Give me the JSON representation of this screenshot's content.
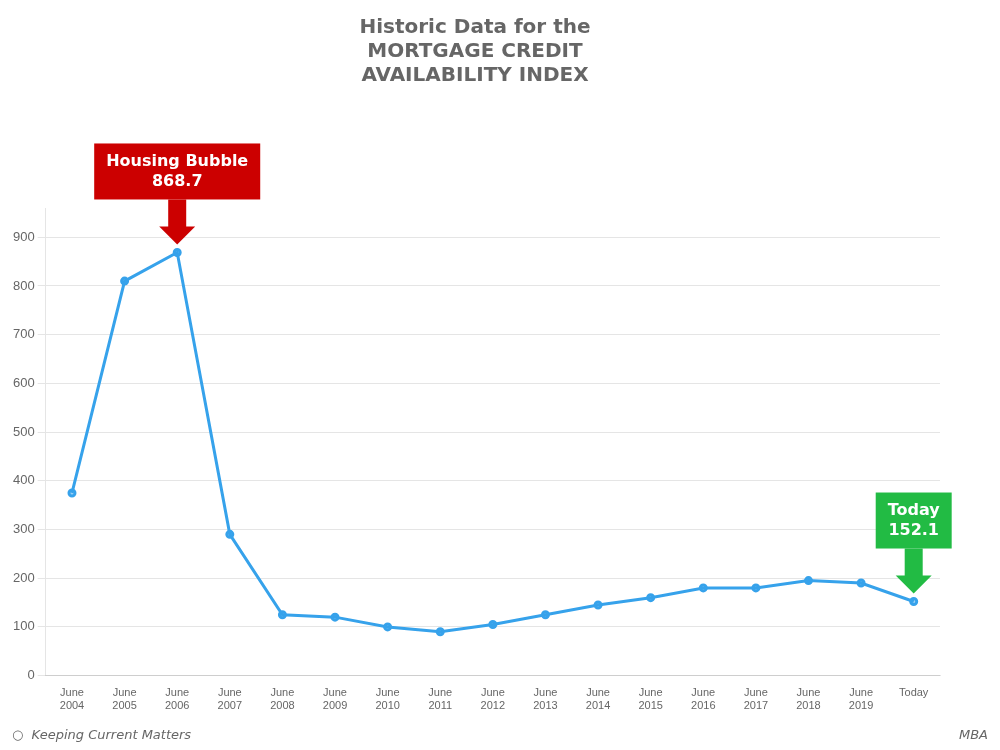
{
  "chart_data": {
    "type": "line",
    "title": "Historic Data for the\nMORTGAGE CREDIT\nAVAILABILITY INDEX",
    "categories": [
      "June\n2004",
      "June\n2005",
      "June\n2006",
      "June\n2007",
      "June\n2008",
      "June\n2009",
      "June\n2010",
      "June\n2011",
      "June\n2012",
      "June\n2013",
      "June\n2014",
      "June\n2015",
      "June\n2016",
      "June\n2017",
      "June\n2018",
      "June\n2019",
      "Today"
    ],
    "values": [
      375,
      810,
      868.7,
      290,
      125,
      120,
      100,
      90,
      105,
      125,
      145,
      160,
      180,
      180,
      195,
      190,
      152.1
    ],
    "ylim": [
      0,
      960
    ],
    "yticks": [
      0,
      100,
      200,
      300,
      400,
      500,
      600,
      700,
      800,
      900
    ],
    "grid": "y",
    "annotations": [
      {
        "text": "Housing Bubble\n868.7",
        "category": "June\n2006",
        "color": "#cc0000"
      },
      {
        "text": "Today\n152.1",
        "category": "Today",
        "color": "#22bb44"
      },
      {
        "text": "○  Keeping Current Matters"
      },
      {
        "text": "MBA"
      }
    ]
  }
}
